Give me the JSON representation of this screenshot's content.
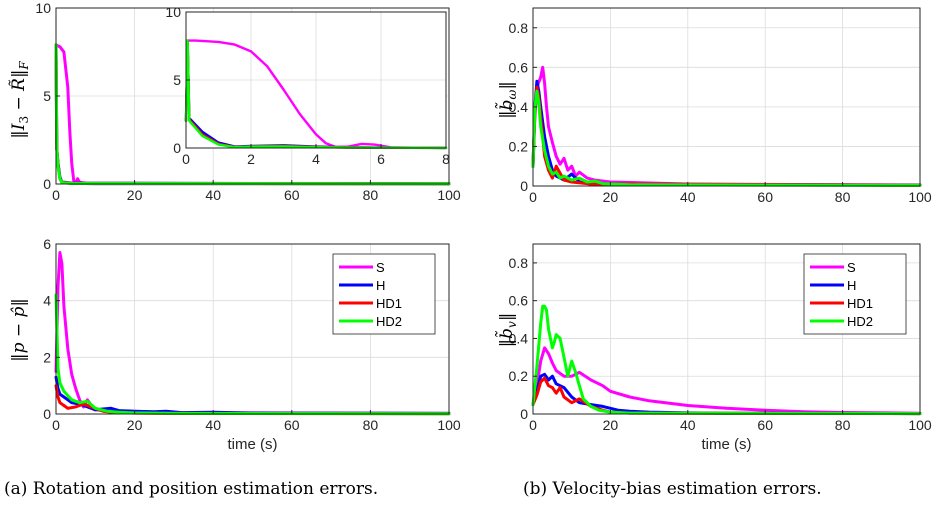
{
  "colors": {
    "S": "#ff00ff",
    "H": "#0000ff",
    "HD1": "#ff0000",
    "HD2": "#00ff00"
  },
  "captions": {
    "a": "(a) Rotation and position estimation errors.",
    "b": "(b) Velocity-bias estimation errors."
  },
  "chart_data": [
    {
      "id": "rot",
      "type": "line",
      "ylabel": "‖I₃ − R̃‖F",
      "xlabel": "",
      "xlim": [
        0,
        100
      ],
      "ylim": [
        0,
        10
      ],
      "xticks": [
        0,
        20,
        40,
        60,
        80,
        100
      ],
      "yticks": [
        0,
        5,
        10
      ],
      "series": [
        {
          "name": "S",
          "x": [
            0,
            1,
            2,
            3,
            3.5,
            4,
            4.5,
            5,
            5.5,
            6,
            8,
            10,
            100
          ],
          "y": [
            7.9,
            7.8,
            7.5,
            5.5,
            3.0,
            1.2,
            0.2,
            0.05,
            0.3,
            0.1,
            0.02,
            0.01,
            0.01
          ]
        },
        {
          "name": "H",
          "x": [
            0,
            0.2,
            0.5,
            1,
            1.5,
            2,
            4,
            100
          ],
          "y": [
            7.9,
            2.0,
            1.2,
            0.4,
            0.1,
            0.1,
            0.05,
            0.01
          ]
        },
        {
          "name": "HD1",
          "x": [
            0,
            0.2,
            0.5,
            1,
            1.5,
            2,
            4,
            100
          ],
          "y": [
            7.9,
            2.0,
            1.1,
            0.3,
            0.1,
            0.08,
            0.04,
            0.01
          ]
        },
        {
          "name": "HD2",
          "x": [
            0,
            0.2,
            0.5,
            1,
            1.5,
            2,
            4,
            100
          ],
          "y": [
            7.9,
            2.0,
            1.0,
            0.3,
            0.08,
            0.06,
            0.03,
            0.01
          ]
        }
      ],
      "inset": {
        "xlim": [
          0,
          8
        ],
        "ylim": [
          0,
          10
        ],
        "xticks": [
          0,
          2,
          4,
          6,
          8
        ],
        "yticks": [
          0,
          5,
          10
        ],
        "series": [
          {
            "name": "S",
            "x": [
              0,
              0.05,
              0.3,
              1,
              1.5,
              2,
              2.5,
              3,
              3.5,
              4,
              4.3,
              4.6,
              5,
              5.4,
              5.8,
              6.3,
              7,
              8
            ],
            "y": [
              2.0,
              7.9,
              7.9,
              7.8,
              7.6,
              7.1,
              6.0,
              4.3,
              2.5,
              1.0,
              0.35,
              0.08,
              0.1,
              0.3,
              0.25,
              0.05,
              0.02,
              0.01
            ]
          },
          {
            "name": "H",
            "x": [
              0,
              0.05,
              0.1,
              0.5,
              1,
              1.5,
              2,
              3,
              4,
              5,
              6,
              8
            ],
            "y": [
              2.0,
              7.9,
              2.2,
              1.2,
              0.4,
              0.1,
              0.15,
              0.2,
              0.1,
              0.05,
              0.03,
              0.01
            ]
          },
          {
            "name": "HD1",
            "x": [
              0,
              0.05,
              0.1,
              0.5,
              1,
              1.5,
              2,
              3,
              4,
              5,
              6,
              8
            ],
            "y": [
              2.0,
              7.9,
              2.1,
              1.0,
              0.3,
              0.08,
              0.12,
              0.15,
              0.08,
              0.04,
              0.02,
              0.01
            ]
          },
          {
            "name": "HD2",
            "x": [
              0,
              0.05,
              0.1,
              0.5,
              1,
              1.5,
              2,
              3,
              4,
              5,
              6,
              8
            ],
            "y": [
              2.0,
              7.9,
              2.0,
              0.9,
              0.25,
              0.06,
              0.1,
              0.12,
              0.06,
              0.03,
              0.02,
              0.01
            ]
          }
        ]
      }
    },
    {
      "id": "pos",
      "type": "line",
      "ylabel": "‖p − p̂‖",
      "xlabel": "time (s)",
      "xlim": [
        0,
        100
      ],
      "ylim": [
        0,
        6
      ],
      "xticks": [
        0,
        20,
        40,
        60,
        80,
        100
      ],
      "yticks": [
        0,
        2,
        4,
        6
      ],
      "legend": {
        "entries": [
          "S",
          "H",
          "HD1",
          "HD2"
        ],
        "position": "top-right"
      },
      "series": [
        {
          "name": "S",
          "x": [
            0,
            0.5,
            1,
            1.5,
            2,
            3,
            4,
            5,
            6,
            7,
            8,
            9,
            10,
            12,
            15,
            20,
            100
          ],
          "y": [
            1.5,
            4.5,
            5.7,
            5.3,
            3.8,
            2.3,
            1.4,
            0.9,
            0.5,
            0.25,
            0.5,
            0.3,
            0.15,
            0.12,
            0.08,
            0.05,
            0.02
          ]
        },
        {
          "name": "H",
          "x": [
            0,
            0.5,
            1,
            2,
            3,
            4,
            6,
            8,
            10,
            14,
            16,
            20,
            25,
            28,
            32,
            40,
            50,
            100
          ],
          "y": [
            1.3,
            0.9,
            0.7,
            0.6,
            0.5,
            0.4,
            0.35,
            0.25,
            0.15,
            0.2,
            0.12,
            0.1,
            0.08,
            0.1,
            0.05,
            0.06,
            0.03,
            0.02
          ]
        },
        {
          "name": "HD1",
          "x": [
            0,
            0.5,
            1,
            2,
            3,
            5,
            7,
            9,
            12,
            15,
            20,
            30,
            100
          ],
          "y": [
            1.0,
            0.6,
            0.4,
            0.3,
            0.2,
            0.25,
            0.35,
            0.25,
            0.1,
            0.05,
            0.03,
            0.02,
            0.01
          ]
        },
        {
          "name": "HD2",
          "x": [
            0,
            0.5,
            1,
            2,
            3,
            4,
            6,
            8,
            10,
            13,
            16,
            20,
            30,
            100
          ],
          "y": [
            4.2,
            1.6,
            1.1,
            0.8,
            0.65,
            0.5,
            0.4,
            0.45,
            0.2,
            0.1,
            0.06,
            0.04,
            0.02,
            0.01
          ]
        }
      ]
    },
    {
      "id": "bw",
      "type": "line",
      "ylabel": "‖b̃ω‖",
      "xlabel": "",
      "xlim": [
        0,
        100
      ],
      "ylim": [
        0,
        0.9
      ],
      "xticks": [
        0,
        20,
        40,
        60,
        80,
        100
      ],
      "yticks": [
        0,
        0.2,
        0.4,
        0.6,
        0.8
      ],
      "series": [
        {
          "name": "S",
          "x": [
            0,
            0.5,
            1,
            2,
            2.5,
            3,
            3.5,
            4,
            5,
            6,
            7,
            8,
            9,
            10,
            11,
            12,
            14,
            16,
            20,
            30,
            40,
            100
          ],
          "y": [
            0.1,
            0.35,
            0.5,
            0.55,
            0.6,
            0.52,
            0.4,
            0.3,
            0.22,
            0.15,
            0.11,
            0.14,
            0.08,
            0.1,
            0.05,
            0.07,
            0.04,
            0.03,
            0.02,
            0.015,
            0.01,
            0.005
          ]
        },
        {
          "name": "H",
          "x": [
            0,
            0.5,
            1,
            1.5,
            2,
            3,
            4,
            5,
            6,
            8,
            10,
            12,
            15,
            20,
            100
          ],
          "y": [
            0.1,
            0.4,
            0.53,
            0.48,
            0.4,
            0.25,
            0.15,
            0.08,
            0.05,
            0.03,
            0.06,
            0.02,
            0.01,
            0.008,
            0.005
          ]
        },
        {
          "name": "HD1",
          "x": [
            0,
            0.5,
            1,
            1.5,
            2,
            3,
            4,
            5,
            6,
            8,
            10,
            15,
            100
          ],
          "y": [
            0.1,
            0.38,
            0.5,
            0.45,
            0.35,
            0.15,
            0.08,
            0.04,
            0.1,
            0.03,
            0.02,
            0.01,
            0.004
          ]
        },
        {
          "name": "HD2",
          "x": [
            0,
            0.5,
            1,
            1.5,
            2,
            3,
            4,
            5,
            6,
            7,
            8,
            10,
            12,
            14,
            16,
            18,
            20,
            25,
            100
          ],
          "y": [
            0.1,
            0.4,
            0.48,
            0.42,
            0.3,
            0.18,
            0.1,
            0.06,
            0.07,
            0.04,
            0.05,
            0.03,
            0.04,
            0.02,
            0.025,
            0.012,
            0.01,
            0.006,
            0.003
          ]
        }
      ]
    },
    {
      "id": "bv",
      "type": "line",
      "ylabel": "‖b̃v‖",
      "xlabel": "time (s)",
      "xlim": [
        0,
        100
      ],
      "ylim": [
        0,
        0.9
      ],
      "xticks": [
        0,
        20,
        40,
        60,
        80,
        100
      ],
      "yticks": [
        0,
        0.2,
        0.4,
        0.6,
        0.8
      ],
      "legend": {
        "entries": [
          "S",
          "H",
          "HD1",
          "HD2"
        ],
        "position": "top-right"
      },
      "series": [
        {
          "name": "S",
          "x": [
            0,
            1,
            2,
            3,
            4,
            5,
            6,
            8,
            10,
            12,
            15,
            18,
            20,
            25,
            30,
            40,
            50,
            60,
            70,
            80,
            100
          ],
          "y": [
            0.05,
            0.15,
            0.28,
            0.35,
            0.32,
            0.27,
            0.23,
            0.2,
            0.2,
            0.22,
            0.18,
            0.15,
            0.12,
            0.09,
            0.07,
            0.045,
            0.03,
            0.02,
            0.012,
            0.008,
            0.004
          ]
        },
        {
          "name": "H",
          "x": [
            0,
            1,
            2,
            3,
            4,
            5,
            6,
            8,
            10,
            12,
            15,
            18,
            20,
            22,
            25,
            30,
            40,
            50,
            100
          ],
          "y": [
            0.05,
            0.12,
            0.2,
            0.21,
            0.18,
            0.2,
            0.16,
            0.14,
            0.09,
            0.06,
            0.05,
            0.04,
            0.03,
            0.02,
            0.015,
            0.01,
            0.006,
            0.004,
            0.002
          ]
        },
        {
          "name": "HD1",
          "x": [
            0,
            1,
            2,
            3,
            4,
            5,
            6,
            7,
            8,
            10,
            12,
            15,
            18,
            20,
            25,
            100
          ],
          "y": [
            0.05,
            0.1,
            0.17,
            0.19,
            0.15,
            0.14,
            0.11,
            0.14,
            0.09,
            0.06,
            0.08,
            0.04,
            0.02,
            0.01,
            0.005,
            0.002
          ]
        },
        {
          "name": "HD2",
          "x": [
            0,
            1,
            2,
            2.5,
            3,
            3.5,
            4,
            5,
            5.5,
            6,
            7,
            8,
            9,
            10,
            11,
            12,
            13,
            14,
            15,
            17,
            20,
            25,
            100
          ],
          "y": [
            0.05,
            0.25,
            0.48,
            0.57,
            0.57,
            0.55,
            0.45,
            0.35,
            0.38,
            0.42,
            0.4,
            0.3,
            0.2,
            0.28,
            0.22,
            0.15,
            0.08,
            0.06,
            0.04,
            0.02,
            0.01,
            0.005,
            0.002
          ]
        }
      ]
    }
  ]
}
